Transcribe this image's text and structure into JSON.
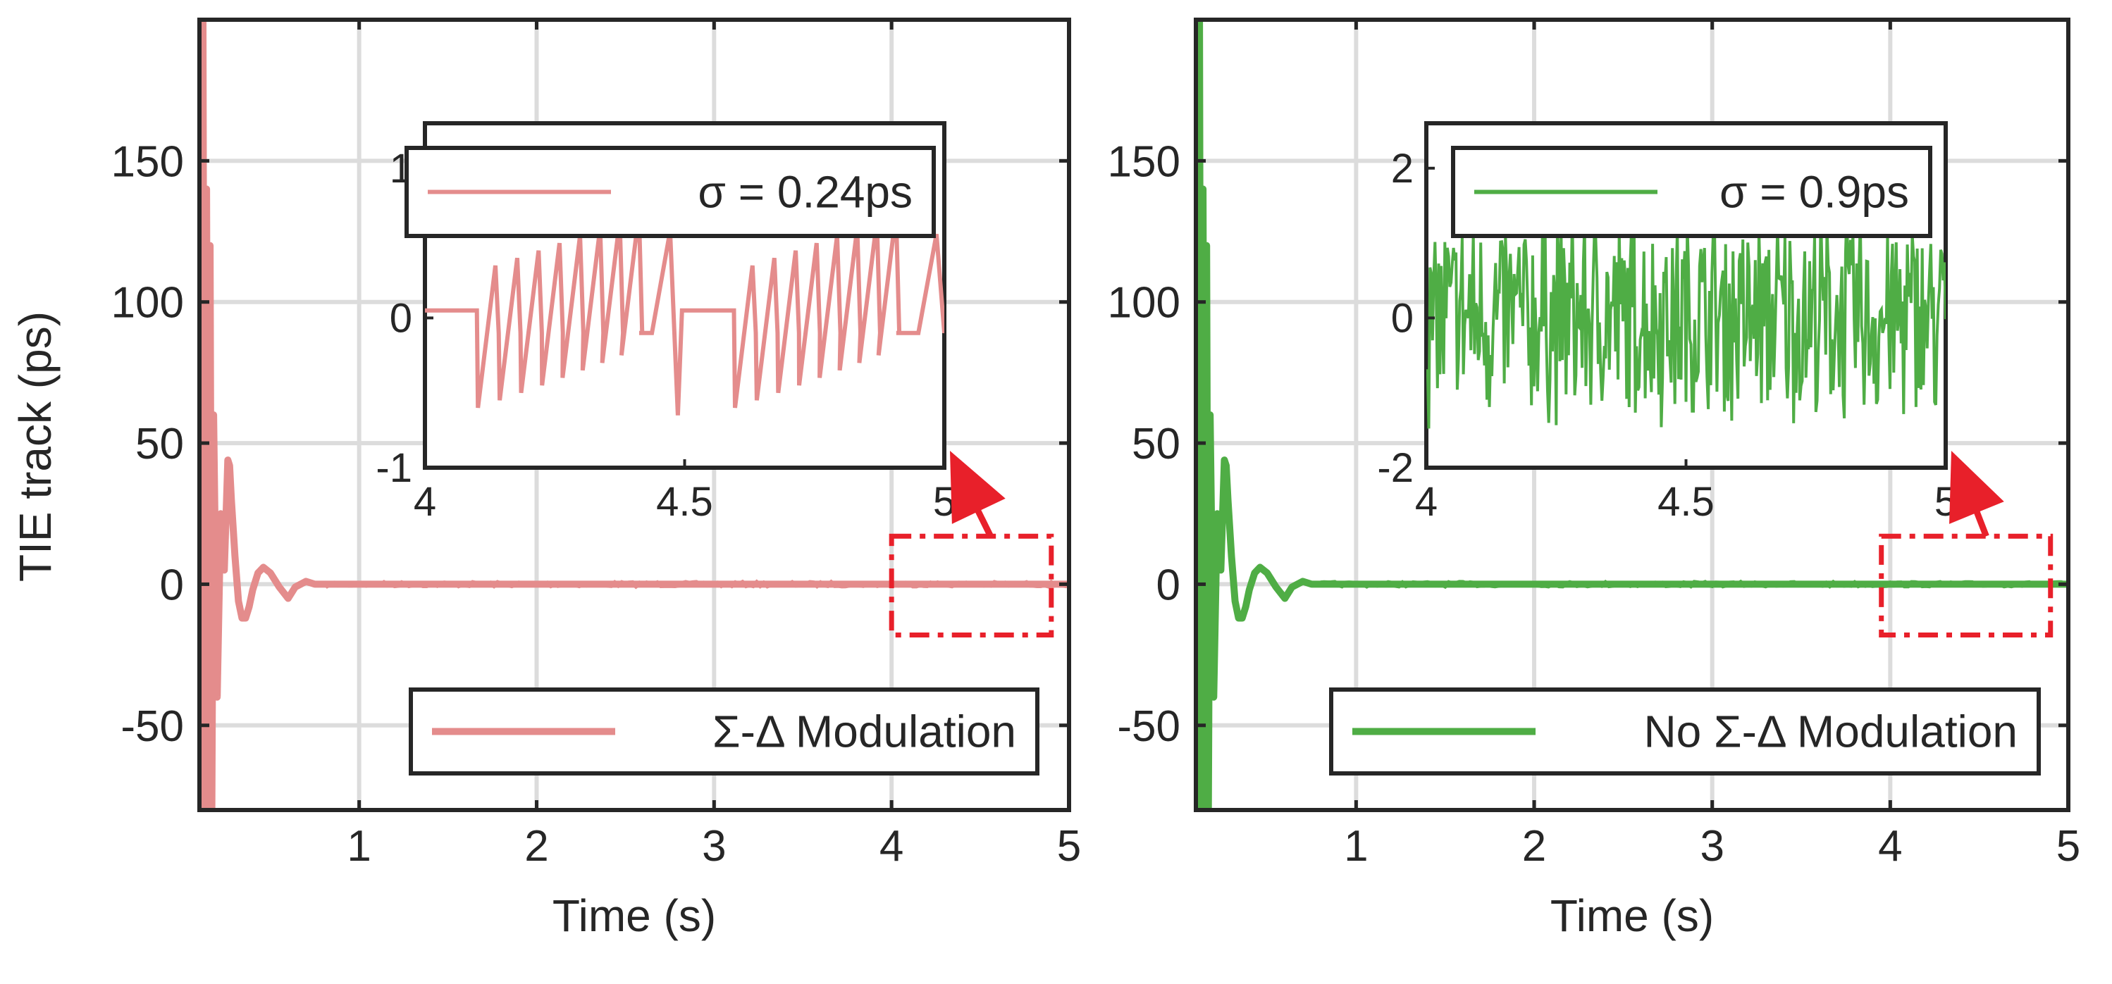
{
  "chart_data": [
    {
      "type": "line",
      "panel": "left",
      "xlabel": "Time (s)",
      "ylabel": "TIE track (ps)",
      "xlim": [
        0.1,
        5
      ],
      "ylim": [
        -80,
        200
      ],
      "xticks": [
        1,
        2,
        3,
        4,
        5
      ],
      "yticks": [
        -50,
        0,
        50,
        100,
        150
      ],
      "xtick_labels": [
        "1",
        "2",
        "3",
        "4",
        "5"
      ],
      "ytick_labels": [
        "-50",
        "0",
        "50",
        "100",
        "150"
      ],
      "grid": true,
      "legend": {
        "position": "bottom-right",
        "entries": [
          "Σ-Δ Modulation"
        ]
      },
      "series": [
        {
          "name": "Σ-Δ Modulation",
          "color": "#e48c8c",
          "x": [
            0.1,
            0.11,
            0.12,
            0.13,
            0.14,
            0.15,
            0.16,
            0.17,
            0.18,
            0.2,
            0.22,
            0.24,
            0.26,
            0.27,
            0.28,
            0.3,
            0.32,
            0.34,
            0.36,
            0.38,
            0.4,
            0.43,
            0.46,
            0.5,
            0.55,
            0.6,
            0.64,
            0.7,
            0.75,
            0.8,
            1.0,
            5.0
          ],
          "y": [
            200,
            -80,
            200,
            -80,
            140,
            -80,
            120,
            -80,
            60,
            -40,
            25,
            5,
            44,
            42,
            30,
            10,
            -6,
            -12,
            -12,
            -8,
            -2,
            4,
            6,
            4,
            -1,
            -5,
            -1,
            1,
            0,
            0,
            0,
            0
          ]
        }
      ],
      "annotation_box": {
        "x": [
          4.0,
          4.9
        ],
        "y": [
          -18,
          17
        ]
      },
      "inset": {
        "xlim": [
          4,
          5
        ],
        "ylim": [
          -1,
          1.3
        ],
        "xticks": [
          4,
          4.5,
          5
        ],
        "yticks": [
          -1,
          0,
          1
        ],
        "xtick_labels": [
          "4",
          "4.5",
          "5"
        ],
        "ytick_labels": [
          "-1",
          "0",
          "1"
        ],
        "legend": "σ = 0.24ps",
        "sawtooth": {
          "baseline": 0.05,
          "periods": [
            {
              "start": 4.0,
              "step": 4.1,
              "low": -0.1,
              "peaks": [
                -0.6,
                -0.55,
                -0.5,
                -0.45,
                -0.4,
                -0.35,
                -0.3,
                -0.25
              ],
              "spike": [
                4.477,
                0.58,
                -0.65
              ]
            },
            {
              "start": 4.495,
              "step": 4.595,
              "low": -0.1,
              "peaks": [
                -0.6,
                -0.55,
                -0.5,
                -0.45,
                -0.4,
                -0.35,
                -0.3,
                -0.25
              ],
              "spike": [
                4.99,
                0.56,
                -0.1
              ]
            }
          ]
        }
      }
    },
    {
      "type": "line",
      "panel": "right",
      "xlabel": "Time (s)",
      "ylabel": "",
      "xlim": [
        0.1,
        5
      ],
      "ylim": [
        -80,
        200
      ],
      "xticks": [
        1,
        2,
        3,
        4,
        5
      ],
      "yticks": [
        -50,
        0,
        50,
        100,
        150
      ],
      "xtick_labels": [
        "1",
        "2",
        "3",
        "4",
        "5"
      ],
      "ytick_labels": [
        "-50",
        "0",
        "50",
        "100",
        "150"
      ],
      "grid": true,
      "legend": {
        "position": "bottom-right",
        "entries": [
          "No Σ-Δ Modulation"
        ]
      },
      "series": [
        {
          "name": "No Σ-Δ Modulation",
          "color": "#4fad45",
          "x": [
            0.1,
            0.11,
            0.12,
            0.13,
            0.14,
            0.15,
            0.16,
            0.17,
            0.18,
            0.2,
            0.22,
            0.24,
            0.26,
            0.27,
            0.28,
            0.3,
            0.32,
            0.34,
            0.36,
            0.38,
            0.4,
            0.43,
            0.46,
            0.5,
            0.55,
            0.6,
            0.64,
            0.7,
            0.75,
            0.8,
            1.0,
            5.0
          ],
          "y": [
            200,
            -80,
            200,
            -80,
            140,
            -80,
            120,
            -80,
            60,
            -40,
            25,
            5,
            44,
            42,
            30,
            10,
            -6,
            -12,
            -12,
            -8,
            -2,
            4,
            6,
            4,
            -1,
            -5,
            -1,
            1,
            0,
            0,
            0,
            0
          ]
        }
      ],
      "annotation_box": {
        "x": [
          3.95,
          4.9
        ],
        "y": [
          -18,
          17
        ]
      },
      "inset": {
        "xlim": [
          4,
          5
        ],
        "ylim": [
          -2,
          2.6
        ],
        "xticks": [
          4,
          4.5,
          5
        ],
        "yticks": [
          -2,
          0,
          2
        ],
        "xtick_labels": [
          "4",
          "4.5",
          "5"
        ],
        "ytick_labels": [
          "-2",
          "0",
          "2"
        ],
        "legend": "σ = 0.9ps",
        "noise": {
          "amplitude": 1.6,
          "sigma": 0.9,
          "samples": 420
        }
      }
    }
  ],
  "colors": {
    "sigma_delta": "#e48c8c",
    "no_sigma_delta": "#4fad45",
    "annotation": "#e8202a",
    "grid": "#dcdcdc",
    "axis": "#262626"
  }
}
